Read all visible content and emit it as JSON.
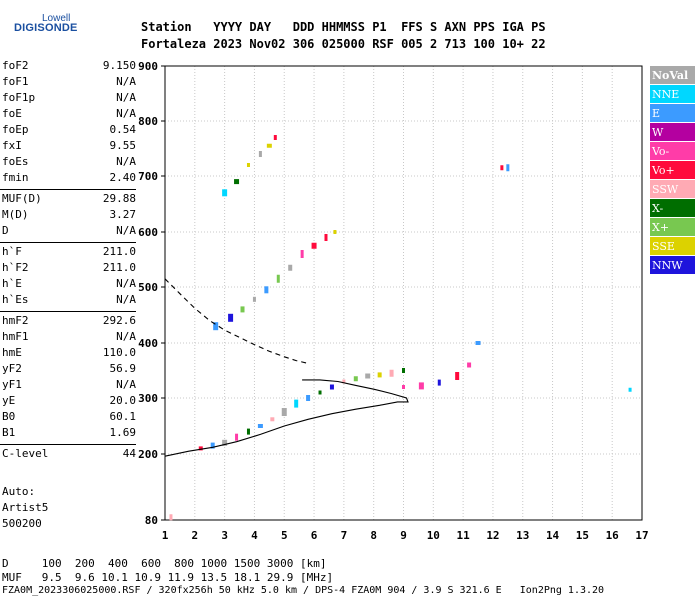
{
  "logo": {
    "line1": "Lowell",
    "line2": "DIGISONDE"
  },
  "header": {
    "row1": "Station   YYYY DAY   DDD HHMMSS P1  FFS S AXN PPS IGA PS",
    "row2": "Fortaleza 2023 Nov02 306 025000 RSF 005 2 713 100 10+ 22"
  },
  "params_group1": [
    {
      "name": "foF2",
      "value": "9.150"
    },
    {
      "name": "foF1",
      "value": "N/A"
    },
    {
      "name": "foF1p",
      "value": "N/A"
    },
    {
      "name": "foE",
      "value": "N/A"
    },
    {
      "name": "foEp",
      "value": "0.54"
    },
    {
      "name": "fxI",
      "value": "9.55"
    },
    {
      "name": "foEs",
      "value": "N/A"
    },
    {
      "name": "fmin",
      "value": "2.40"
    }
  ],
  "params_group2": [
    {
      "name": "MUF(D)",
      "value": "29.88"
    },
    {
      "name": "M(D)",
      "value": "3.27"
    },
    {
      "name": "D",
      "value": "N/A"
    }
  ],
  "params_group3": [
    {
      "name": "h`F",
      "value": "211.0"
    },
    {
      "name": "h`F2",
      "value": "211.0"
    },
    {
      "name": "h`E",
      "value": "N/A"
    },
    {
      "name": "h`Es",
      "value": "N/A"
    }
  ],
  "params_group4": [
    {
      "name": "hmF2",
      "value": "292.6"
    },
    {
      "name": "hmF1",
      "value": "N/A"
    },
    {
      "name": "hmE",
      "value": "110.0"
    },
    {
      "name": "yF2",
      "value": "56.9"
    },
    {
      "name": "yF1",
      "value": "N/A"
    },
    {
      "name": "yE",
      "value": "20.0"
    },
    {
      "name": "B0",
      "value": "60.1"
    },
    {
      "name": "B1",
      "value": "1.69"
    }
  ],
  "clevel": {
    "name": "C-level",
    "value": "44"
  },
  "auto": [
    "Auto:",
    "Artist5",
    "500200"
  ],
  "footer": {
    "d_row": "D     100  200  400  600  800 1000 1500 3000 [km]",
    "muf_row": "MUF   9.5  9.6 10.1 10.9 11.9 13.5 18.1 29.9 [MHz]",
    "info": "FZA0M_2023306025000.RSF / 320fx256h 50 kHz 5.0 km / DPS-4 FZA0M 904 / 3.9 S 321.6 E   Ion2Png 1.3.20"
  },
  "legend": [
    {
      "label": "NoVal",
      "color": "#a9a9a9"
    },
    {
      "label": "NNE",
      "color": "#00d7ff"
    },
    {
      "label": "E",
      "color": "#3c9bff"
    },
    {
      "label": "W",
      "color": "#b400a0"
    },
    {
      "label": "Vo-",
      "color": "#ff3ca8"
    },
    {
      "label": "Vo+",
      "color": "#ff0a3c"
    },
    {
      "label": "SSW",
      "color": "#ffaab4"
    },
    {
      "label": "X-",
      "color": "#006e00"
    },
    {
      "label": "X+",
      "color": "#78c850"
    },
    {
      "label": "SSE",
      "color": "#dcd200"
    },
    {
      "label": "NNW",
      "color": "#1e14dc"
    }
  ],
  "chart_data": {
    "type": "scatter",
    "xlabel": "",
    "ylabel": "",
    "xlim": [
      1,
      17
    ],
    "ylim": [
      80,
      900
    ],
    "x_ticks": [
      1,
      2,
      3,
      4,
      5,
      6,
      7,
      8,
      9,
      10,
      11,
      12,
      13,
      14,
      15,
      16,
      17
    ],
    "y_ticks": [
      80,
      200,
      300,
      400,
      500,
      600,
      700,
      800,
      900
    ],
    "grid": true,
    "legend_position": "right",
    "traces": [
      {
        "name": "F2 O-trace",
        "color_key": "mixed",
        "points": [
          [
            2.2,
            210
          ],
          [
            2.6,
            215
          ],
          [
            3.0,
            220
          ],
          [
            3.4,
            230
          ],
          [
            3.8,
            240
          ],
          [
            4.2,
            250
          ],
          [
            4.6,
            262
          ],
          [
            5.0,
            275
          ],
          [
            5.4,
            290
          ],
          [
            5.8,
            300
          ],
          [
            6.2,
            310
          ],
          [
            6.6,
            320
          ],
          [
            7.0,
            330
          ],
          [
            7.4,
            335
          ],
          [
            7.8,
            340
          ],
          [
            8.2,
            342
          ],
          [
            8.6,
            345
          ],
          [
            9.0,
            350
          ]
        ]
      },
      {
        "name": "F2 X-trace",
        "color_key": "mixed",
        "points": [
          [
            9.0,
            320
          ],
          [
            9.6,
            322
          ],
          [
            10.2,
            328
          ],
          [
            10.8,
            340
          ],
          [
            11.2,
            360
          ],
          [
            11.5,
            400
          ]
        ]
      },
      {
        "name": "F2 2-hop",
        "color_key": "mixed",
        "points": [
          [
            2.7,
            430
          ],
          [
            3.2,
            445
          ],
          [
            3.6,
            460
          ],
          [
            4.0,
            478
          ],
          [
            4.4,
            495
          ],
          [
            4.8,
            515
          ],
          [
            5.2,
            535
          ],
          [
            5.6,
            560
          ],
          [
            6.0,
            575
          ],
          [
            6.4,
            590
          ],
          [
            6.7,
            600
          ]
        ]
      },
      {
        "name": "F2 3-hop",
        "color_key": "mixed",
        "points": [
          [
            3.0,
            670
          ],
          [
            3.4,
            690
          ],
          [
            3.8,
            720
          ],
          [
            4.2,
            740
          ],
          [
            4.5,
            755
          ],
          [
            4.7,
            770
          ]
        ]
      },
      {
        "name": "outlier",
        "color_key": "mixed",
        "points": [
          [
            12.3,
            715
          ],
          [
            12.5,
            715
          ],
          [
            16.6,
            315
          ],
          [
            1.2,
            85
          ]
        ]
      }
    ],
    "profile_curve": {
      "type": "line",
      "style": "solid",
      "points": [
        [
          1.0,
          196
        ],
        [
          1.8,
          205
        ],
        [
          2.6,
          212
        ],
        [
          3.4,
          222
        ],
        [
          4.2,
          235
        ],
        [
          5.0,
          250
        ],
        [
          5.8,
          262
        ],
        [
          6.6,
          272
        ],
        [
          7.4,
          280
        ],
        [
          8.2,
          287
        ],
        [
          8.8,
          293
        ],
        [
          9.15,
          293
        ],
        [
          9.1,
          300
        ],
        [
          8.6,
          308
        ],
        [
          8.0,
          316
        ],
        [
          7.4,
          323
        ],
        [
          6.8,
          330
        ],
        [
          6.2,
          333
        ],
        [
          5.6,
          333
        ]
      ]
    },
    "profile_extension": {
      "type": "line",
      "style": "dashed",
      "points": [
        [
          1.0,
          515
        ],
        [
          1.5,
          488
        ],
        [
          2.0,
          462
        ],
        [
          2.5,
          440
        ],
        [
          3.0,
          423
        ],
        [
          3.5,
          410
        ],
        [
          4.0,
          397
        ],
        [
          4.5,
          385
        ],
        [
          5.0,
          375
        ],
        [
          5.4,
          368
        ],
        [
          5.8,
          363
        ]
      ]
    }
  }
}
